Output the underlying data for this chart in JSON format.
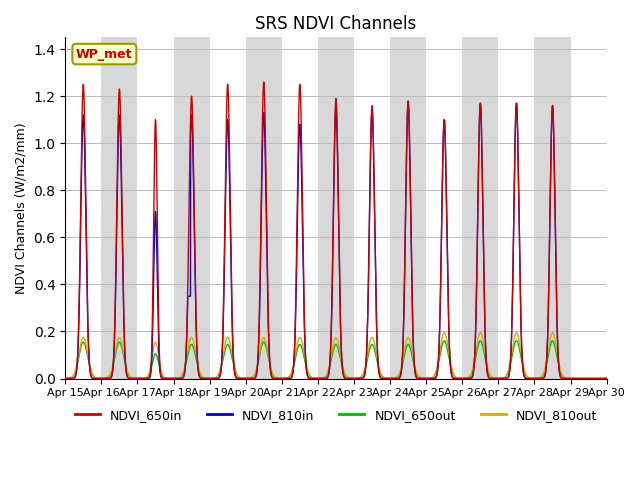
{
  "title": "SRS NDVI Channels",
  "ylabel": "NDVI Channels (W/m2/mm)",
  "xlabel": "",
  "ylim": [
    0.0,
    1.45
  ],
  "annotation": "WP_met",
  "legend_labels": [
    "NDVI_650in",
    "NDVI_810in",
    "NDVI_650out",
    "NDVI_810out"
  ],
  "line_colors": [
    "#cc0000",
    "#0000cc",
    "#00bb00",
    "#ddaa00"
  ],
  "background_color": "#ffffff",
  "x_tick_labels": [
    "Apr 15",
    "Apr 16",
    "Apr 17",
    "Apr 18",
    "Apr 19",
    "Apr 20",
    "Apr 21",
    "Apr 22",
    "Apr 23",
    "Apr 24",
    "Apr 25",
    "Apr 26",
    "Apr 27",
    "Apr 28",
    "Apr 29",
    "Apr 30"
  ],
  "day_peaks_650in": [
    1.25,
    1.23,
    1.1,
    1.2,
    1.25,
    1.26,
    1.25,
    1.19,
    1.16,
    1.18,
    1.1,
    1.17,
    1.17,
    1.16,
    0.0
  ],
  "day_peaks_810in": [
    1.12,
    1.12,
    0.71,
    1.12,
    1.1,
    1.13,
    1.08,
    1.15,
    1.14,
    1.17,
    1.1,
    1.17,
    1.17,
    1.16,
    0.0
  ],
  "day_peaks_650out": [
    0.155,
    0.155,
    0.105,
    0.145,
    0.145,
    0.155,
    0.145,
    0.145,
    0.145,
    0.145,
    0.16,
    0.16,
    0.16,
    0.16,
    0.0
  ],
  "day_peaks_810out": [
    0.175,
    0.175,
    0.155,
    0.175,
    0.175,
    0.175,
    0.175,
    0.175,
    0.175,
    0.175,
    0.195,
    0.195,
    0.195,
    0.195,
    0.0
  ],
  "apr18_810in_truncated": true,
  "apr18_810in_peak": 0.71,
  "apr18_810in_truncate_at": 0.35
}
